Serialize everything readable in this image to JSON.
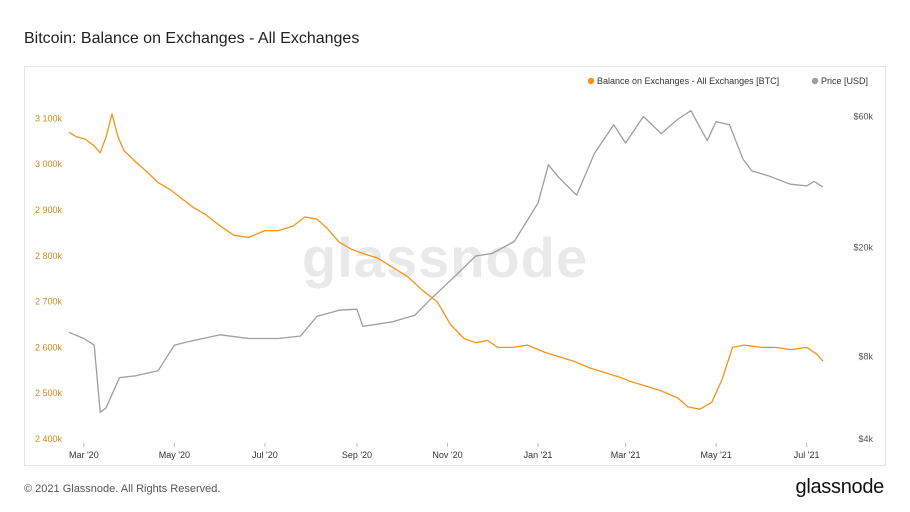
{
  "header": {
    "title": "Bitcoin: Balance on Exchanges - All Exchanges"
  },
  "footer": {
    "copyright": "© 2021 Glassnode. All Rights Reserved.",
    "logo_text": "glassnode"
  },
  "watermark": "glassnode",
  "colors": {
    "balance": "#f7931a",
    "price": "#9e9e9e"
  },
  "chart_data": {
    "type": "line",
    "title": "Bitcoin: Balance on Exchanges - All Exchanges",
    "legend_placement": "top-right",
    "grid": false,
    "x_ticks": [
      "Mar '20",
      "May '20",
      "Jul '20",
      "Sep '20",
      "Nov '20",
      "Jan '21",
      "Mar '21",
      "May '21",
      "Jul '21"
    ],
    "x_range": [
      "2020-02-20",
      "2021-07-12"
    ],
    "y_left": {
      "ticks": [
        "2 400k",
        "2 500k",
        "2 600k",
        "2 700k",
        "2 800k",
        "2 900k",
        "3 000k",
        "3 100k"
      ],
      "range": [
        2400000,
        3125000
      ]
    },
    "y_right": {
      "scale": "log",
      "ticks": [
        "$4k",
        "$8k",
        "$20k",
        "$60k"
      ],
      "tick_values": [
        4000,
        8000,
        20000,
        60000
      ],
      "range": [
        4000,
        65000
      ]
    },
    "series": [
      {
        "name": "Balance on Exchanges - All Exchanges [BTC]",
        "axis": "left",
        "x": [
          "2020-02-20",
          "2020-02-25",
          "2020-03-02",
          "2020-03-08",
          "2020-03-12",
          "2020-03-16",
          "2020-03-20",
          "2020-03-24",
          "2020-03-28",
          "2020-04-05",
          "2020-04-12",
          "2020-04-20",
          "2020-04-28",
          "2020-05-06",
          "2020-05-14",
          "2020-05-22",
          "2020-06-01",
          "2020-06-10",
          "2020-06-20",
          "2020-07-01",
          "2020-07-10",
          "2020-07-20",
          "2020-07-28",
          "2020-08-05",
          "2020-08-12",
          "2020-08-20",
          "2020-08-28",
          "2020-09-05",
          "2020-09-15",
          "2020-09-25",
          "2020-10-05",
          "2020-10-15",
          "2020-10-25",
          "2020-11-03",
          "2020-11-12",
          "2020-11-20",
          "2020-11-28",
          "2020-12-05",
          "2020-12-15",
          "2020-12-25",
          "2021-01-05",
          "2021-01-15",
          "2021-01-25",
          "2021-02-05",
          "2021-02-15",
          "2021-02-25",
          "2021-03-05",
          "2021-03-15",
          "2021-03-25",
          "2021-04-05",
          "2021-04-12",
          "2021-04-20",
          "2021-04-28",
          "2021-05-05",
          "2021-05-12",
          "2021-05-20",
          "2021-06-01",
          "2021-06-10",
          "2021-06-20",
          "2021-07-01",
          "2021-07-08",
          "2021-07-12"
        ],
        "values": [
          3070000,
          3060000,
          3055000,
          3040000,
          3025000,
          3060000,
          3110000,
          3060000,
          3030000,
          3005000,
          2985000,
          2960000,
          2945000,
          2925000,
          2905000,
          2890000,
          2865000,
          2845000,
          2840000,
          2855000,
          2855000,
          2865000,
          2885000,
          2880000,
          2860000,
          2830000,
          2815000,
          2805000,
          2795000,
          2775000,
          2755000,
          2725000,
          2700000,
          2650000,
          2620000,
          2610000,
          2615000,
          2600000,
          2600000,
          2605000,
          2590000,
          2580000,
          2570000,
          2555000,
          2545000,
          2535000,
          2525000,
          2515000,
          2505000,
          2490000,
          2470000,
          2465000,
          2480000,
          2530000,
          2600000,
          2605000,
          2600000,
          2600000,
          2595000,
          2600000,
          2585000,
          2570000
        ]
      },
      {
        "name": "Price [USD]",
        "axis": "right",
        "x": [
          "2020-02-20",
          "2020-03-01",
          "2020-03-08",
          "2020-03-12",
          "2020-03-16",
          "2020-03-25",
          "2020-04-05",
          "2020-04-20",
          "2020-05-01",
          "2020-05-12",
          "2020-06-01",
          "2020-06-20",
          "2020-07-10",
          "2020-07-25",
          "2020-08-05",
          "2020-08-20",
          "2020-09-01",
          "2020-09-05",
          "2020-09-25",
          "2020-10-10",
          "2020-10-21",
          "2020-11-05",
          "2020-11-20",
          "2020-12-01",
          "2020-12-16",
          "2021-01-01",
          "2021-01-08",
          "2021-01-15",
          "2021-01-27",
          "2021-02-08",
          "2021-02-21",
          "2021-03-01",
          "2021-03-13",
          "2021-03-25",
          "2021-04-05",
          "2021-04-14",
          "2021-04-25",
          "2021-05-01",
          "2021-05-10",
          "2021-05-19",
          "2021-05-25",
          "2021-06-05",
          "2021-06-20",
          "2021-07-01",
          "2021-07-06",
          "2021-07-12"
        ],
        "values": [
          9800,
          9300,
          8800,
          5000,
          5200,
          6700,
          6800,
          7100,
          8800,
          9100,
          9600,
          9300,
          9300,
          9500,
          11200,
          11800,
          11900,
          10300,
          10700,
          11300,
          13000,
          15500,
          18600,
          19000,
          21000,
          29000,
          40000,
          36000,
          31000,
          44000,
          56000,
          48000,
          60000,
          52000,
          58500,
          63000,
          49000,
          57500,
          56000,
          42000,
          38000,
          36500,
          34000,
          33500,
          34800,
          33200
        ]
      }
    ]
  }
}
